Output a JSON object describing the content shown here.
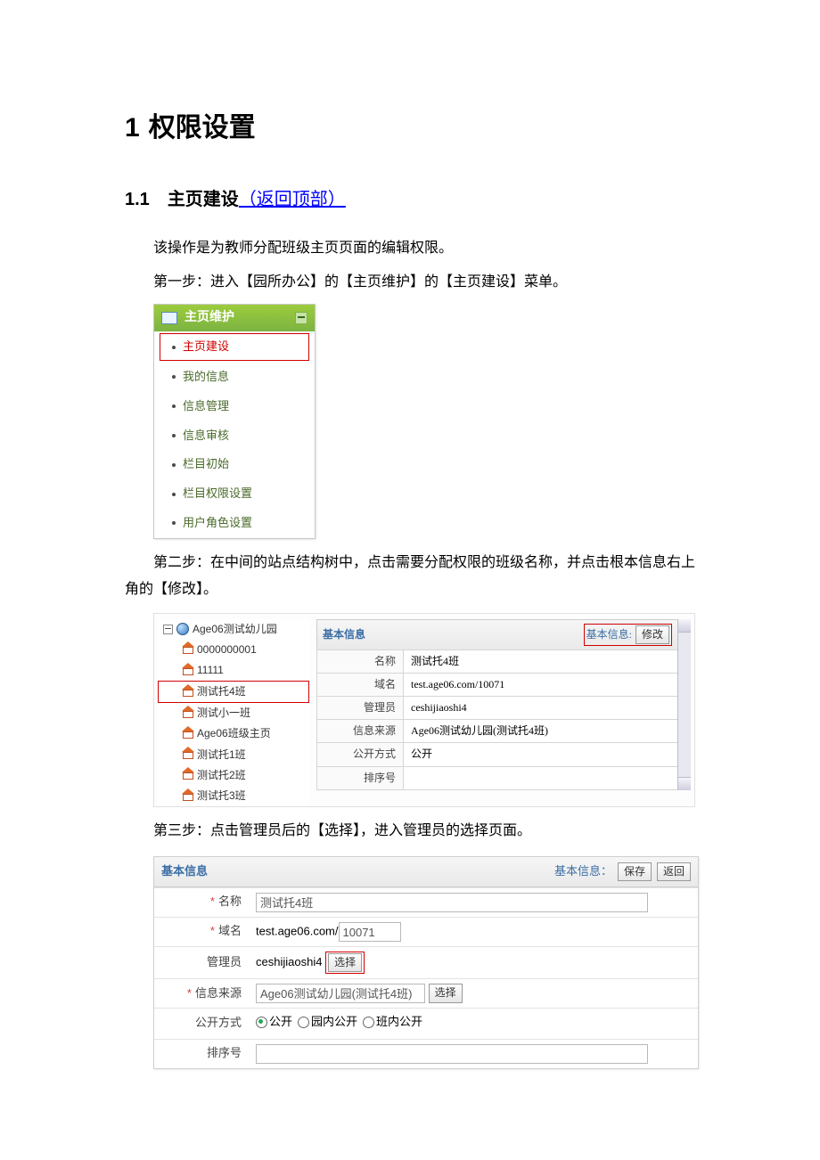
{
  "colors": {
    "link": "#0000ff",
    "highlight_border": "#d00000",
    "menu_bg": "#8bc34a",
    "menu_text": "#4a6a2a",
    "header_blue": "#3a6ea5"
  },
  "heading1": {
    "num": "1",
    "text": "权限设置"
  },
  "heading2": {
    "num": "1.1",
    "text": "主页建设",
    "back_top": "（返回顶部）"
  },
  "paragraphs": {
    "intro": "该操作是为教师分配班级主页页面的编辑权限。",
    "step1": "第一步：进入【园所办公】的【主页维护】的【主页建设】菜单。",
    "step2": "第二步：在中间的站点结构树中，点击需要分配权限的班级名称，并点击根本信息右上角的【修改】。",
    "step3": "第三步：点击管理员后的【选择】，进入管理员的选择页面。"
  },
  "menu": {
    "title": "主页维护",
    "items": [
      {
        "label": "主页建设",
        "selected": true
      },
      {
        "label": "我的信息",
        "selected": false
      },
      {
        "label": "信息管理",
        "selected": false
      },
      {
        "label": "信息审核",
        "selected": false
      },
      {
        "label": "栏目初始",
        "selected": false
      },
      {
        "label": "栏目权限设置",
        "selected": false
      },
      {
        "label": "用户角色设置",
        "selected": false
      }
    ]
  },
  "tree": {
    "root": "Age06测试幼儿园",
    "nodes": [
      {
        "label": "0000000001",
        "selected": false
      },
      {
        "label": "11111",
        "selected": false
      },
      {
        "label": "测试托4班",
        "selected": true
      },
      {
        "label": "测试小一班",
        "selected": false
      },
      {
        "label": "Age06班级主页",
        "selected": false
      },
      {
        "label": "测试托1班",
        "selected": false
      },
      {
        "label": "测试托2班",
        "selected": false
      },
      {
        "label": "测试托3班",
        "selected": false
      }
    ]
  },
  "info_panel": {
    "title": "基本信息",
    "right_label": "基本信息:",
    "modify_btn": "修改",
    "rows": [
      {
        "label": "名称",
        "value": "测试托4班"
      },
      {
        "label": "域名",
        "value": "test.age06.com/10071"
      },
      {
        "label": "管理员",
        "value": "ceshijiaoshi4"
      },
      {
        "label": "信息来源",
        "value": "Age06测试幼儿园(测试托4班)"
      },
      {
        "label": "公开方式",
        "value": "公开"
      },
      {
        "label": "排序号",
        "value": ""
      }
    ]
  },
  "edit_form": {
    "title": "基本信息",
    "right_label": "基本信息：",
    "save_btn": "保存",
    "back_btn": "返回",
    "select_btn": "选择",
    "domain_prefix": "test.age06.com/",
    "fields": {
      "name": {
        "label": "名称",
        "required": true,
        "value": "测试托4班"
      },
      "domain": {
        "label": "域名",
        "required": true,
        "value": "10071"
      },
      "admin": {
        "label": "管理员",
        "required": false,
        "value": "ceshijiaoshi4"
      },
      "source": {
        "label": "信息来源",
        "required": true,
        "value": "Age06测试幼儿园(测试托4班)"
      },
      "publish": {
        "label": "公开方式",
        "required": false,
        "options": [
          "公开",
          "园内公开",
          "班内公开"
        ],
        "selected": 0
      },
      "order": {
        "label": "排序号",
        "required": false,
        "value": ""
      }
    }
  }
}
